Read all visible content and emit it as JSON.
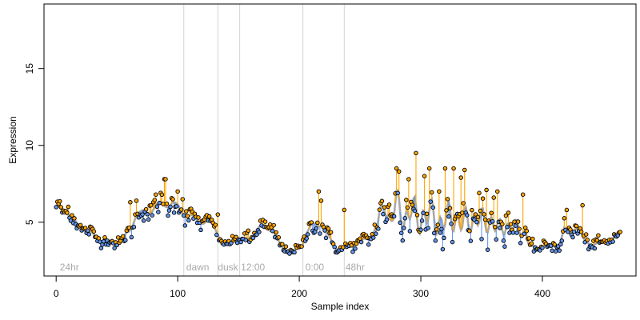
{
  "chart_data": {
    "type": "scatter",
    "xlabel": "Sample index",
    "ylabel": "Expression",
    "xlim": [
      -10,
      477
    ],
    "ylim": [
      1.5,
      19.2
    ],
    "x_ticks": [
      0,
      100,
      200,
      300,
      400
    ],
    "y_ticks": [
      5,
      10,
      15
    ],
    "phase_lines": [
      105,
      133,
      151,
      203,
      237
    ],
    "phase_labels": [
      {
        "x": 3,
        "text": "24hr"
      },
      {
        "x": 107,
        "text": "dawn"
      },
      {
        "x": 133,
        "text": "dusk"
      },
      {
        "x": 152,
        "text": "12:00"
      },
      {
        "x": 205,
        "text": "0:00"
      },
      {
        "x": 238,
        "text": "48hr"
      }
    ],
    "colors": {
      "above_fit": "#ffa500",
      "below_fit": "#6495ed",
      "fit": "#a9a9a9",
      "point_stroke": "#000000",
      "phase_line": "#d3d3d3"
    },
    "anchors": [
      [
        0,
        5.9,
        0.5
      ],
      [
        8,
        5.8,
        0.6
      ],
      [
        15,
        5.0,
        0.5
      ],
      [
        22,
        4.6,
        0.4
      ],
      [
        30,
        4.2,
        0.4
      ],
      [
        38,
        3.8,
        0.3
      ],
      [
        46,
        3.7,
        0.3
      ],
      [
        54,
        3.7,
        0.4
      ],
      [
        60,
        4.4,
        0.7
      ],
      [
        65,
        5.4,
        0.6
      ],
      [
        72,
        5.6,
        0.6
      ],
      [
        80,
        5.9,
        0.6
      ],
      [
        88,
        6.2,
        0.7
      ],
      [
        95,
        6.2,
        0.6
      ],
      [
        102,
        5.9,
        0.6
      ],
      [
        108,
        5.4,
        0.5
      ],
      [
        115,
        5.2,
        0.5
      ],
      [
        122,
        5.0,
        0.5
      ],
      [
        128,
        5.0,
        0.4
      ],
      [
        133,
        4.3,
        0.3
      ],
      [
        136,
        3.6,
        0.2
      ],
      [
        142,
        3.6,
        0.2
      ],
      [
        148,
        4.0,
        0.3
      ],
      [
        154,
        3.8,
        0.4
      ],
      [
        160,
        4.0,
        0.5
      ],
      [
        166,
        4.5,
        0.5
      ],
      [
        172,
        4.8,
        0.5
      ],
      [
        178,
        4.5,
        0.5
      ],
      [
        184,
        3.5,
        0.4
      ],
      [
        190,
        3.2,
        0.2
      ],
      [
        196,
        3.1,
        0.2
      ],
      [
        202,
        3.5,
        0.3
      ],
      [
        206,
        4.3,
        0.5
      ],
      [
        212,
        4.8,
        0.6
      ],
      [
        218,
        5.0,
        0.7
      ],
      [
        224,
        4.0,
        0.5
      ],
      [
        230,
        3.4,
        0.3
      ],
      [
        236,
        3.2,
        0.3
      ],
      [
        242,
        3.5,
        0.3
      ],
      [
        250,
        3.7,
        0.3
      ],
      [
        258,
        4.0,
        0.5
      ],
      [
        264,
        4.8,
        0.6
      ],
      [
        270,
        6.2,
        0.7
      ],
      [
        275,
        5.0,
        1.0
      ],
      [
        280,
        6.3,
        1.1
      ],
      [
        286,
        5.2,
        1.2
      ],
      [
        292,
        5.8,
        1.3
      ],
      [
        298,
        5.2,
        1.4
      ],
      [
        304,
        5.5,
        1.3
      ],
      [
        310,
        5.4,
        1.3
      ],
      [
        316,
        5.0,
        1.3
      ],
      [
        322,
        5.2,
        1.3
      ],
      [
        328,
        5.4,
        1.3
      ],
      [
        334,
        4.9,
        1.2
      ],
      [
        340,
        5.1,
        1.1
      ],
      [
        346,
        5.3,
        1.1
      ],
      [
        352,
        5.0,
        1.0
      ],
      [
        358,
        5.1,
        1.0
      ],
      [
        364,
        4.5,
        0.8
      ],
      [
        370,
        4.8,
        0.7
      ],
      [
        376,
        4.7,
        0.7
      ],
      [
        382,
        4.5,
        0.6
      ],
      [
        386,
        4.3,
        0.6
      ],
      [
        390,
        3.4,
        0.3
      ],
      [
        396,
        3.3,
        0.3
      ],
      [
        402,
        3.5,
        0.3
      ],
      [
        408,
        3.4,
        0.3
      ],
      [
        414,
        3.6,
        0.4
      ],
      [
        418,
        4.5,
        0.6
      ],
      [
        422,
        4.2,
        0.6
      ],
      [
        428,
        4.8,
        0.6
      ],
      [
        434,
        3.8,
        0.4
      ],
      [
        440,
        3.6,
        0.3
      ],
      [
        446,
        3.6,
        0.3
      ],
      [
        452,
        3.7,
        0.3
      ],
      [
        458,
        3.9,
        0.4
      ],
      [
        462,
        4.2,
        0.4
      ]
    ],
    "peaks": [
      [
        2,
        6.2
      ],
      [
        10,
        6.0
      ],
      [
        61,
        6.3
      ],
      [
        66,
        6.4
      ],
      [
        82,
        6.8
      ],
      [
        89,
        7.8
      ],
      [
        90,
        7.8
      ],
      [
        100,
        7.0
      ],
      [
        104,
        6.5
      ],
      [
        133,
        5.5
      ],
      [
        216,
        7.0
      ],
      [
        218,
        6.4
      ],
      [
        237,
        5.8
      ],
      [
        280,
        8.5
      ],
      [
        282,
        8.3
      ],
      [
        290,
        7.8
      ],
      [
        296,
        9.5
      ],
      [
        303,
        8.0
      ],
      [
        307,
        8.5
      ],
      [
        315,
        7.0
      ],
      [
        320,
        8.5
      ],
      [
        327,
        8.5
      ],
      [
        333,
        7.9
      ],
      [
        336,
        8.4
      ],
      [
        348,
        6.9
      ],
      [
        354,
        7.1
      ],
      [
        360,
        6.6
      ],
      [
        363,
        7.0
      ],
      [
        384,
        6.8
      ],
      [
        420,
        5.8
      ],
      [
        433,
        6.1
      ]
    ],
    "n_points": 465
  }
}
